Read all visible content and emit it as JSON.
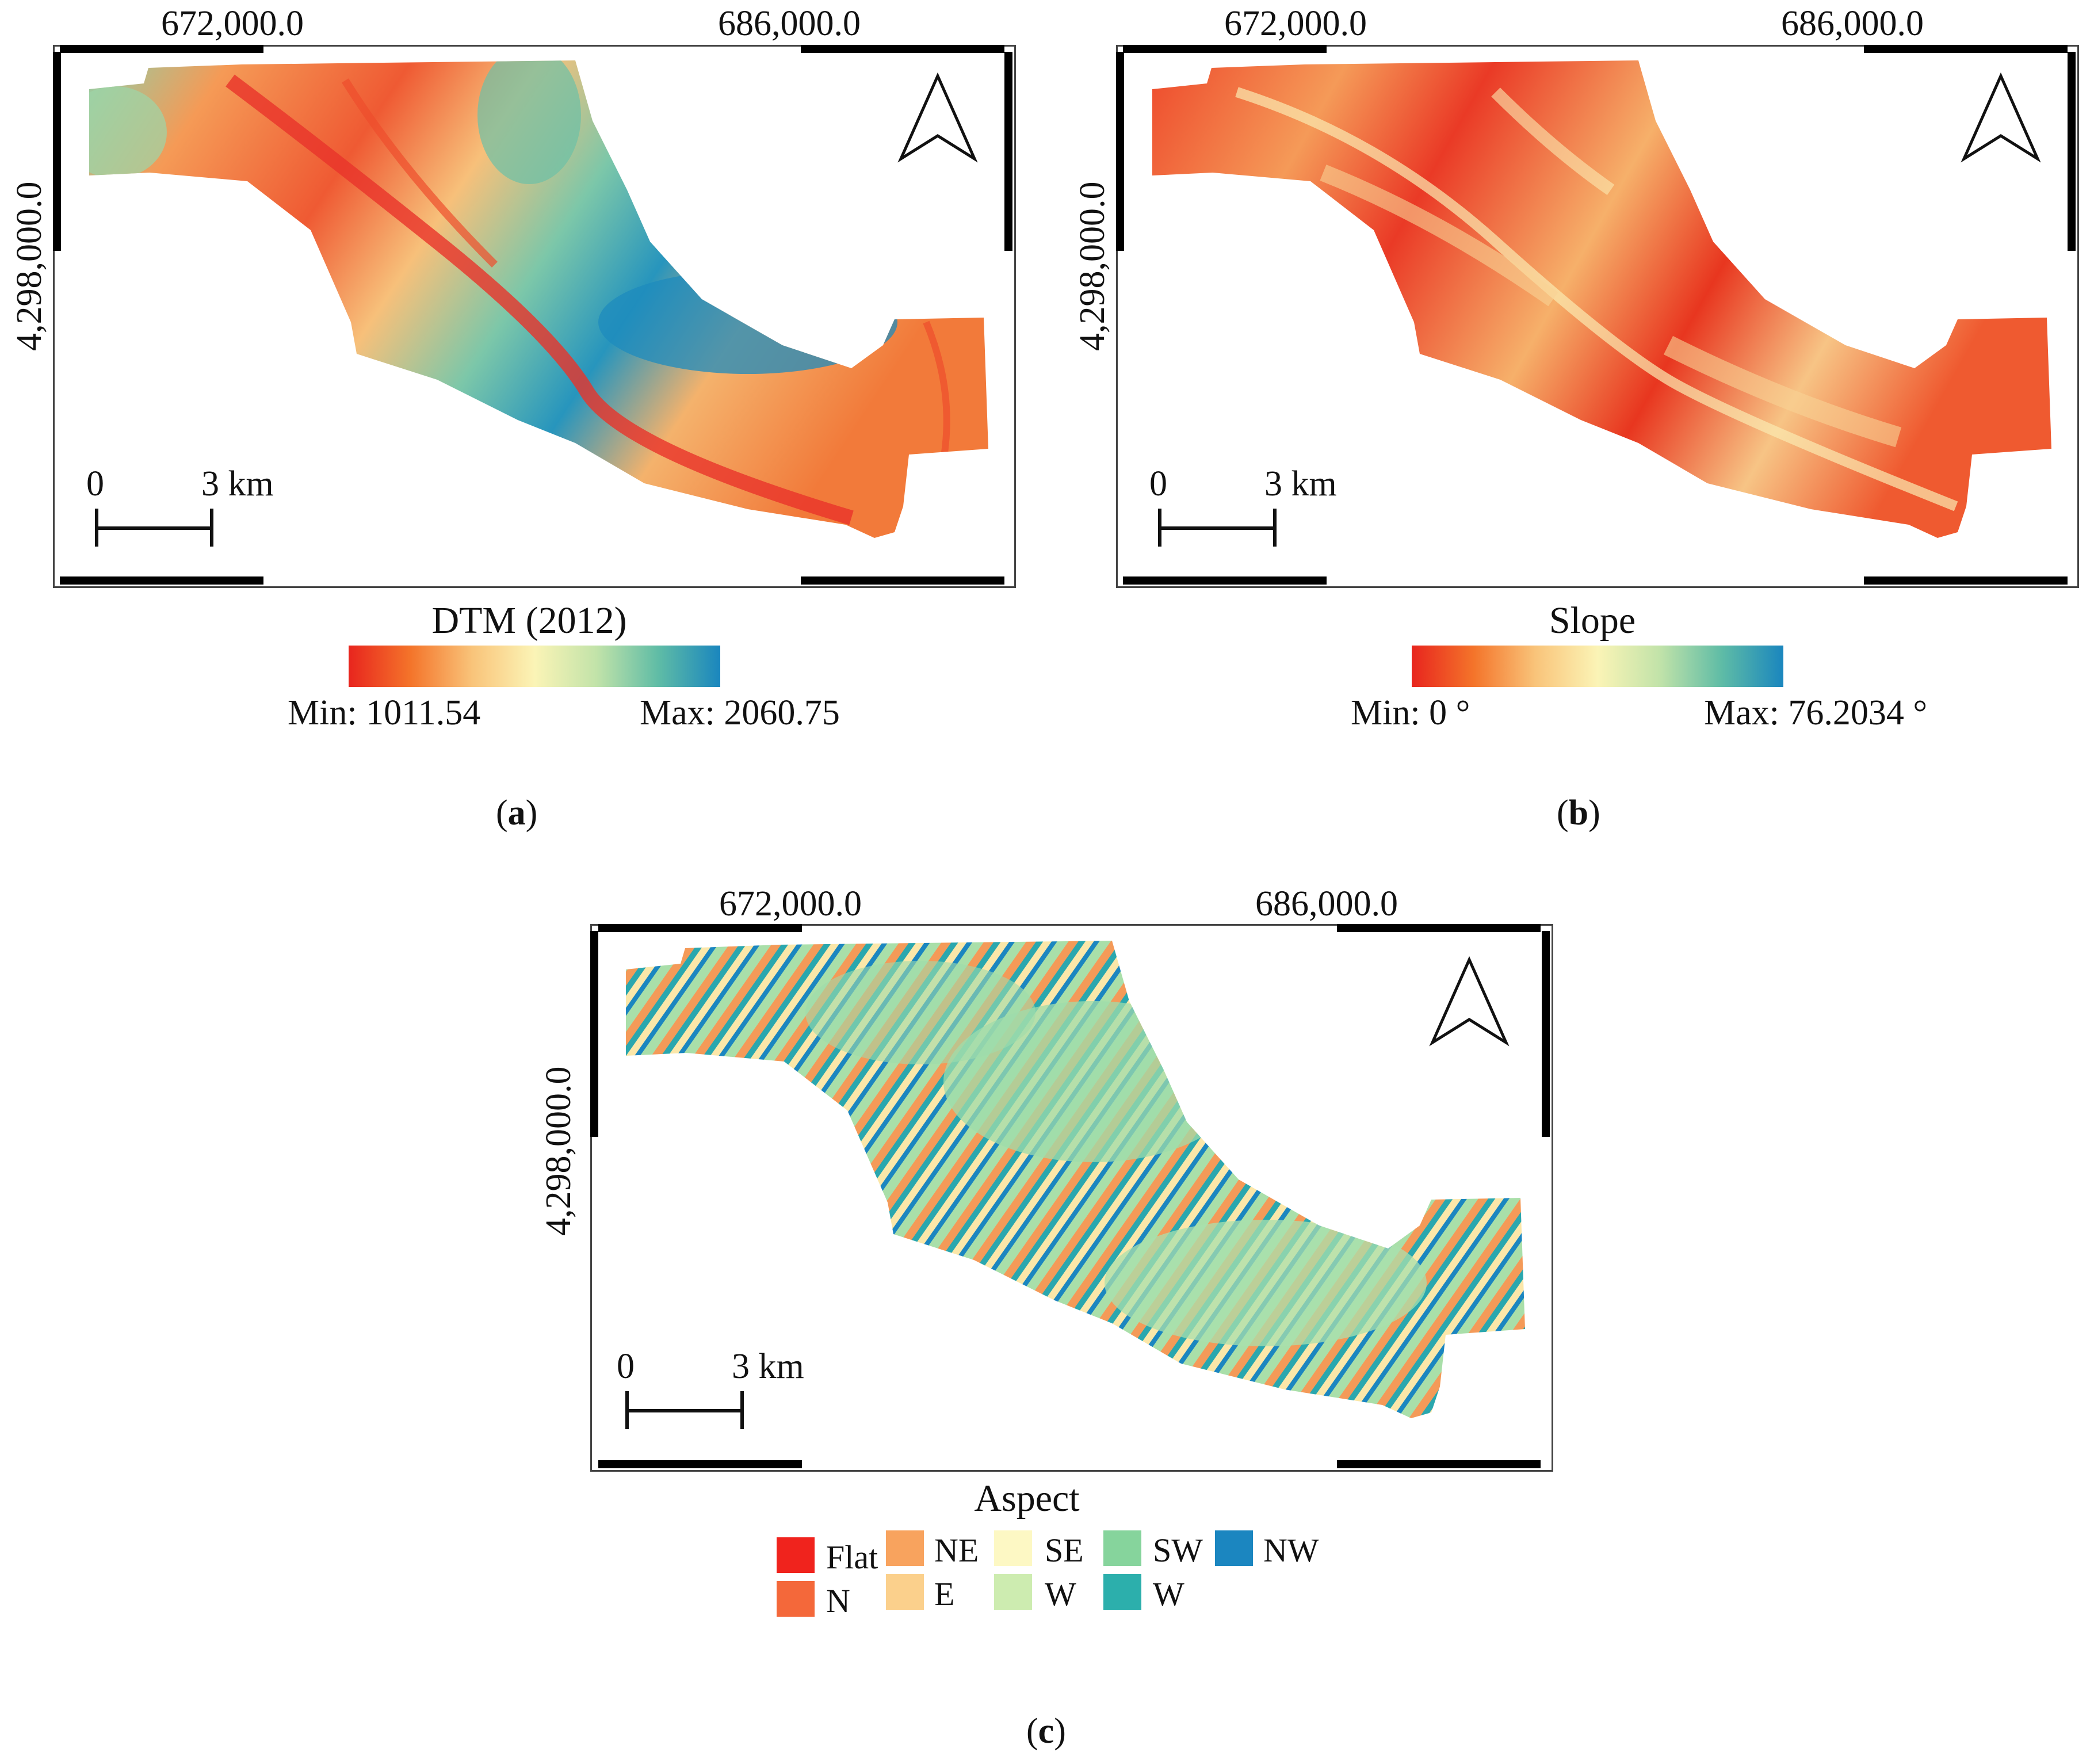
{
  "panels": {
    "a": {
      "x_coords": [
        "672,000.0",
        "686,000.0"
      ],
      "y_coord": "4,298,000.0",
      "scalebar": {
        "start": "0",
        "end": "3 km"
      },
      "legend": {
        "title": "DTM (2012)",
        "min": "Min: 1011.54",
        "max": "Max: 2060.75",
        "ramp": [
          "#e8251e",
          "#f4742a",
          "#f9c47a",
          "#fbf4b6",
          "#c2e3a9",
          "#5fbca6",
          "#1a86be"
        ]
      },
      "caption_letter": "a"
    },
    "b": {
      "x_coords": [
        "672,000.0",
        "686,000.0"
      ],
      "y_coord": "4,298,000.0",
      "scalebar": {
        "start": "0",
        "end": "3 km"
      },
      "legend": {
        "title": "Slope",
        "min": "Min: 0 °",
        "max": "Max: 76.2034 °",
        "ramp": [
          "#e8251e",
          "#f4742a",
          "#f9c47a",
          "#fbf4b6",
          "#c2e3a9",
          "#5fbca6",
          "#1a86be"
        ]
      },
      "caption_letter": "b"
    },
    "c": {
      "x_coords": [
        "672,000.0",
        "686,000.0"
      ],
      "y_coord": "4,298,000.0",
      "scalebar": {
        "start": "0",
        "end": "3 km"
      },
      "legend": {
        "title": "Aspect",
        "classes": [
          {
            "label": "Flat",
            "color": "#f0231d"
          },
          {
            "label": "N",
            "color": "#f4683a"
          },
          {
            "label": "NE",
            "color": "#f8a35e"
          },
          {
            "label": "E",
            "color": "#fbd08c"
          },
          {
            "label": "SE",
            "color": "#fdf8c4"
          },
          {
            "label": "W",
            "color": "#cdecb0"
          },
          {
            "label": "SW",
            "color": "#86d49c"
          },
          {
            "label": "W",
            "color": "#2cafac"
          },
          {
            "label": "NW",
            "color": "#1b86c0"
          }
        ]
      },
      "caption_letter": "c"
    }
  }
}
